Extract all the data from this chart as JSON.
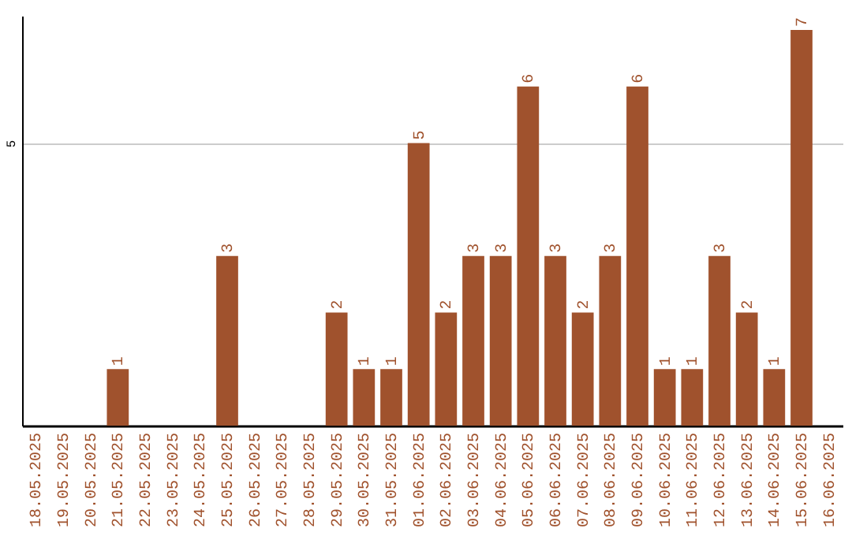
{
  "chart_data": {
    "type": "bar",
    "categories": [
      "18.05.2025",
      "19.05.2025",
      "20.05.2025",
      "21.05.2025",
      "22.05.2025",
      "23.05.2025",
      "24.05.2025",
      "25.05.2025",
      "26.05.2025",
      "27.05.2025",
      "28.05.2025",
      "29.05.2025",
      "30.05.2025",
      "31.05.2025",
      "01.06.2025",
      "02.06.2025",
      "03.06.2025",
      "04.06.2025",
      "05.06.2025",
      "06.06.2025",
      "07.06.2025",
      "08.06.2025",
      "09.06.2025",
      "10.06.2025",
      "11.06.2025",
      "12.06.2025",
      "13.06.2025",
      "14.06.2025",
      "15.06.2025",
      "16.06.2025"
    ],
    "values": [
      0,
      0,
      0,
      1,
      0,
      0,
      0,
      3,
      0,
      0,
      0,
      2,
      1,
      1,
      5,
      2,
      3,
      3,
      6,
      3,
      2,
      3,
      6,
      1,
      1,
      3,
      2,
      1,
      7,
      0
    ],
    "value_labels": [
      null,
      null,
      null,
      "1",
      null,
      null,
      null,
      "3",
      null,
      null,
      null,
      "2",
      "1",
      "1",
      "5",
      "2",
      "3",
      "3",
      "6",
      "3",
      "2",
      "3",
      "6",
      "1",
      "1",
      "3",
      "2",
      "1",
      "7",
      null
    ],
    "color": "#a0522d",
    "ylim": [
      0,
      7.25
    ],
    "yticks": [
      5
    ],
    "grid": "y"
  }
}
